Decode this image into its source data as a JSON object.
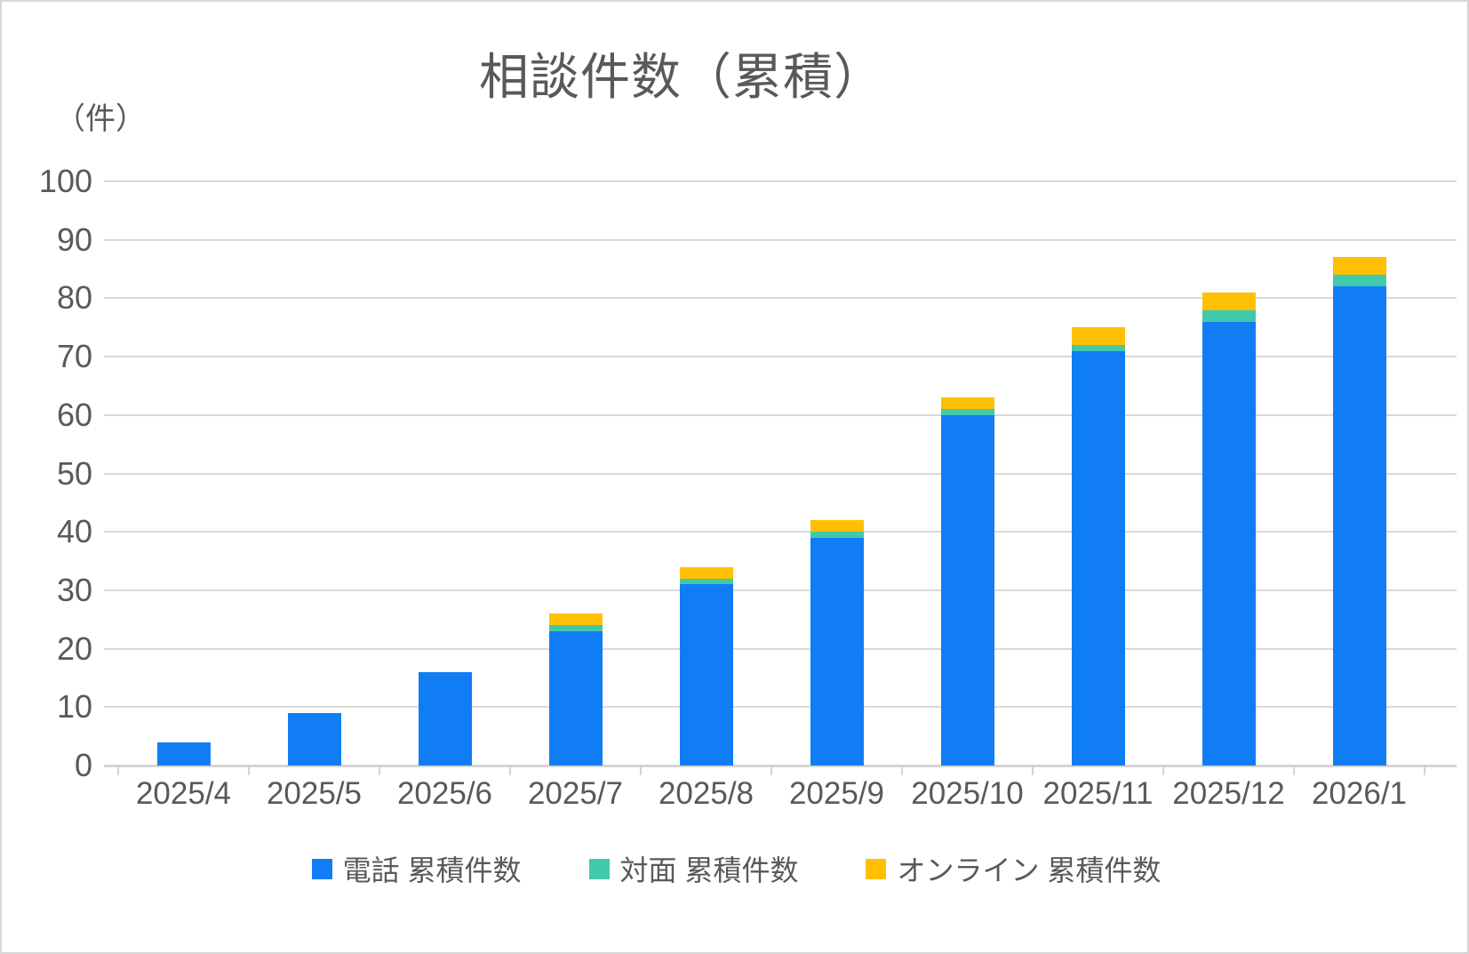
{
  "header": {
    "title": "相談件数（累積）",
    "unit_label": "（件）"
  },
  "colors": {
    "phone_blue": "#117DF5",
    "inperson_teal": "#41C9AC",
    "online_yellow": "#FFC003",
    "grid_gray": "#D9D9D9",
    "text_gray": "#595959"
  },
  "chart_data": {
    "type": "bar",
    "stacked": true,
    "title": "相談件数（累積）",
    "ylabel": "（件）",
    "xlabel": "",
    "grid": true,
    "legend_position": "bottom",
    "ylim": [
      0,
      100
    ],
    "ytick_step": 10,
    "yticks": [
      0,
      10,
      20,
      30,
      40,
      50,
      60,
      70,
      80,
      90,
      100
    ],
    "categories": [
      "2025/4",
      "2025/5",
      "2025/6",
      "2025/7",
      "2025/8",
      "2025/9",
      "2025/10",
      "2025/11",
      "2025/12",
      "2026/1"
    ],
    "series": [
      {
        "name": "電話 累積件数",
        "color": "#117DF5",
        "values": [
          4,
          9,
          16,
          23,
          31,
          39,
          60,
          71,
          76,
          82
        ]
      },
      {
        "name": "対面 累積件数",
        "color": "#41C9AC",
        "values": [
          0,
          0,
          0,
          1,
          1,
          1,
          1,
          1,
          2,
          2
        ]
      },
      {
        "name": "オンライン 累積件数",
        "color": "#FFC003",
        "values": [
          0,
          0,
          0,
          2,
          2,
          2,
          2,
          3,
          3,
          3
        ]
      }
    ],
    "totals": [
      4,
      9,
      16,
      26,
      34,
      42,
      63,
      75,
      81,
      87
    ]
  }
}
